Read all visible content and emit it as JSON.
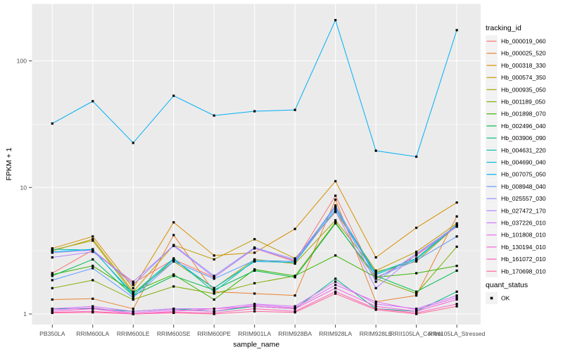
{
  "figure": {
    "x_axis_title": "sample_name",
    "y_axis_title": "FPKM + 1",
    "tracking_legend_title": "tracking_id",
    "quant_legend_title": "quant_status",
    "quant_status_label": "OK"
  },
  "chart_data": {
    "type": "line",
    "title": "",
    "xlabel": "sample_name",
    "ylabel": "FPKM + 1",
    "y_scale": "log10",
    "y_ticks": [
      1,
      10,
      100
    ],
    "y_tick_labels": [
      "1",
      "10",
      "100"
    ],
    "y_minor_breaks": [
      3.1623,
      31.623
    ],
    "ylim": [
      0.82,
      282
    ],
    "grid": true,
    "panel_bg": "#EBEBEB",
    "grid_color": "#FFFFFF",
    "point_shape": "square",
    "point_color": "#000000",
    "legend_position": "right",
    "categories": [
      "PB350LA",
      "RRIM600LA",
      "RRIM600LE",
      "RRIM600SE",
      "RRIM600PE",
      "RRIM901LA",
      "RRIM928BA",
      "RRIM928LA",
      "RRIM928LE",
      "RRII105LA_Control",
      "RRII105LA_Stressed"
    ],
    "series": [
      {
        "name": "Hb_000019_060",
        "color": "#F8766D",
        "values": [
          2.1,
          3.2,
          1.75,
          2.7,
          1.95,
          3.3,
          2.6,
          8.6,
          1.9,
          2.9,
          4.9
        ]
      },
      {
        "name": "Hb_000025_520",
        "color": "#EA8331",
        "values": [
          1.3,
          1.32,
          1.1,
          4.2,
          1.5,
          1.45,
          1.4,
          8.0,
          1.25,
          1.4,
          5.9
        ]
      },
      {
        "name": "Hb_000318_330",
        "color": "#D89000",
        "values": [
          3.3,
          4.1,
          1.6,
          5.3,
          2.9,
          3.05,
          4.7,
          11.2,
          2.8,
          4.8,
          7.6
        ]
      },
      {
        "name": "Hb_000574_350",
        "color": "#C09B00",
        "values": [
          3.15,
          3.9,
          1.5,
          3.5,
          2.7,
          3.9,
          2.75,
          6.4,
          2.2,
          3.1,
          5.2
        ]
      },
      {
        "name": "Hb_000935_050",
        "color": "#A3A500",
        "values": [
          3.2,
          3.8,
          1.45,
          2.6,
          1.6,
          2.7,
          2.5,
          5.5,
          2.15,
          2.6,
          5.0
        ]
      },
      {
        "name": "Hb_001189_050",
        "color": "#7CAE00",
        "values": [
          1.6,
          1.85,
          1.3,
          1.65,
          1.45,
          1.75,
          2.0,
          5.3,
          1.9,
          1.45,
          3.4
        ]
      },
      {
        "name": "Hb_001898_070",
        "color": "#39B600",
        "values": [
          2.05,
          2.4,
          1.5,
          2.05,
          1.3,
          2.25,
          2.0,
          2.9,
          1.95,
          2.1,
          2.4
        ]
      },
      {
        "name": "Hb_002496_040",
        "color": "#00BB4E",
        "values": [
          2.0,
          2.7,
          1.4,
          2.0,
          1.55,
          2.2,
          1.95,
          5.2,
          2.0,
          1.5,
          2.2
        ]
      },
      {
        "name": "Hb_003906_090",
        "color": "#00C087",
        "values": [
          1.1,
          1.1,
          1.05,
          1.1,
          1.05,
          1.15,
          1.1,
          1.9,
          1.1,
          1.05,
          1.5
        ]
      },
      {
        "name": "Hb_004631_220",
        "color": "#00C0B2",
        "values": [
          3.25,
          3.2,
          1.45,
          2.75,
          1.5,
          2.65,
          2.6,
          7.0,
          2.1,
          2.75,
          5.1
        ]
      },
      {
        "name": "Hb_004690_040",
        "color": "#00BCD8",
        "values": [
          3.1,
          3.25,
          1.4,
          2.7,
          1.6,
          2.6,
          2.55,
          6.7,
          2.05,
          2.7,
          5.0
        ]
      },
      {
        "name": "Hb_007075_050",
        "color": "#00B0F6",
        "values": [
          32,
          48,
          22.5,
          53,
          37,
          40,
          41,
          210,
          19.5,
          17.5,
          175
        ]
      },
      {
        "name": "Hb_008948_040",
        "color": "#619CFF",
        "values": [
          1.85,
          2.3,
          1.35,
          2.6,
          1.9,
          2.65,
          2.6,
          7.2,
          1.95,
          2.65,
          4.1
        ]
      },
      {
        "name": "Hb_025557_030",
        "color": "#9590FF",
        "values": [
          3.05,
          3.2,
          1.7,
          3.5,
          2.0,
          3.35,
          2.7,
          7.0,
          1.8,
          3.0,
          5.0
        ]
      },
      {
        "name": "Hb_027472_170",
        "color": "#B385FF",
        "values": [
          2.8,
          3.1,
          1.8,
          3.45,
          1.95,
          3.3,
          2.65,
          6.5,
          1.6,
          2.95,
          4.9
        ]
      },
      {
        "name": "Hb_037226_010",
        "color": "#D376FB",
        "values": [
          1.1,
          1.15,
          1.05,
          1.1,
          1.1,
          1.2,
          1.15,
          1.8,
          1.2,
          1.1,
          1.4
        ]
      },
      {
        "name": "Hb_101808_010",
        "color": "#E76BF3",
        "values": [
          1.08,
          1.12,
          1.02,
          1.08,
          1.05,
          1.18,
          1.12,
          1.7,
          1.25,
          1.08,
          1.35
        ]
      },
      {
        "name": "Hb_130194_010",
        "color": "#F863DF",
        "values": [
          1.05,
          1.1,
          1.0,
          1.05,
          1.1,
          1.15,
          1.1,
          1.6,
          1.15,
          1.05,
          1.3
        ]
      },
      {
        "name": "Hb_161072_010",
        "color": "#FF62BF",
        "values": [
          1.03,
          1.05,
          1.0,
          1.03,
          1.02,
          1.1,
          1.05,
          1.5,
          1.1,
          1.02,
          1.2
        ]
      },
      {
        "name": "Hb_170698_010",
        "color": "#FF6A98",
        "values": [
          1.02,
          1.03,
          1.0,
          1.02,
          1.0,
          1.05,
          1.03,
          1.45,
          1.08,
          1.0,
          1.15
        ]
      }
    ]
  }
}
